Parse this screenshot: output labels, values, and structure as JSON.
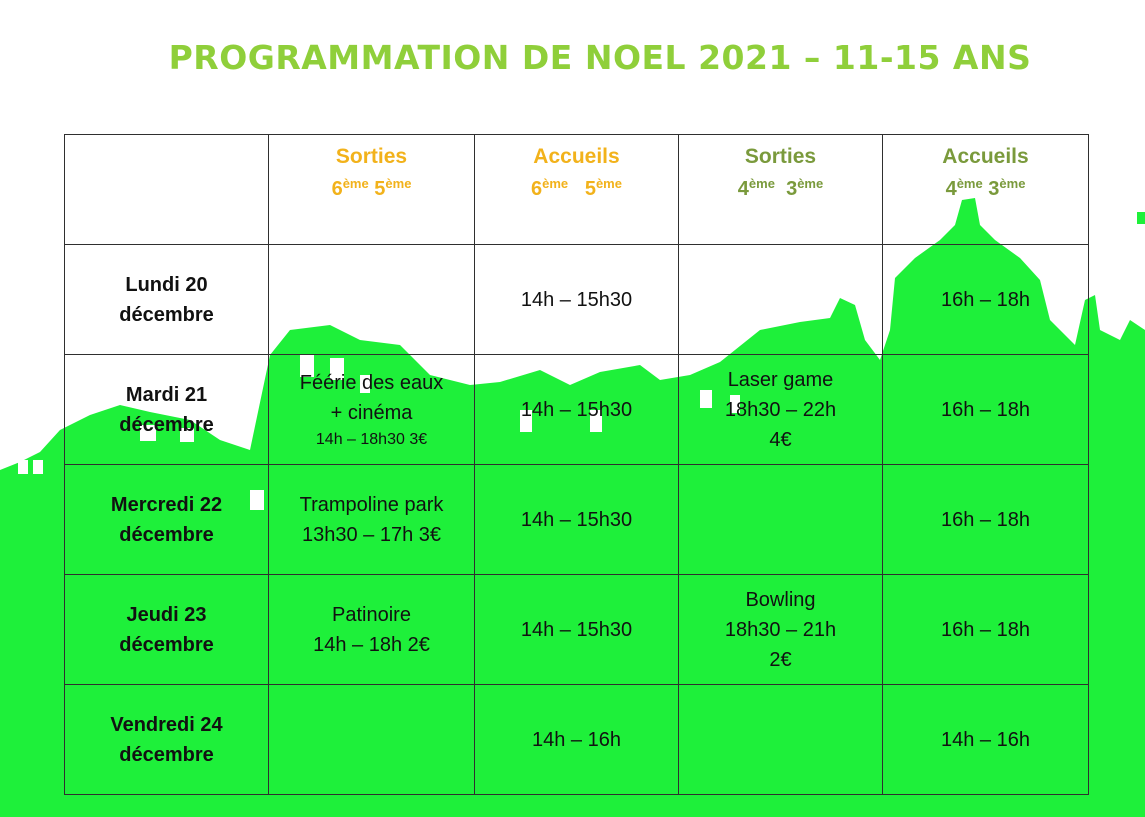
{
  "title": "PROGRAMMATION DE NOEL 2021 – 11-15 ANS",
  "colors": {
    "title": "#8fcf3a",
    "accent_orange": "#f2b21b",
    "accent_olive": "#7a9a3c",
    "background_green": "#1ef03a"
  },
  "headers": [
    {
      "label": "",
      "grades": [
        "",
        ""
      ]
    },
    {
      "label": "Sorties",
      "grades": [
        "6",
        "5"
      ],
      "sup": "ème"
    },
    {
      "label": "Accueils",
      "grades": [
        "6",
        "5"
      ],
      "sup": "ème"
    },
    {
      "label": "Sorties",
      "grades": [
        "4",
        "3"
      ],
      "sup": "ème"
    },
    {
      "label": "Accueils",
      "grades": [
        "4",
        "3"
      ],
      "sup": "ème"
    }
  ],
  "rows": [
    {
      "day": "Lundi 20",
      "month": "décembre",
      "sorties_65": [],
      "accueils_65": [
        "14h – 15h30"
      ],
      "sorties_43": [],
      "accueils_43": [
        "16h – 18h"
      ]
    },
    {
      "day": "Mardi 21",
      "month": "décembre",
      "sorties_65": [
        "Féérie des eaux",
        "+ cinéma",
        "14h – 18h30 3€"
      ],
      "accueils_65": [
        "14h – 15h30"
      ],
      "sorties_43": [
        "Laser game",
        "18h30 – 22h",
        "4€"
      ],
      "accueils_43": [
        "16h – 18h"
      ]
    },
    {
      "day": "Mercredi 22",
      "month": "décembre",
      "sorties_65": [
        "Trampoline park",
        "13h30 – 17h 3€"
      ],
      "accueils_65": [
        "14h – 15h30"
      ],
      "sorties_43": [],
      "accueils_43": [
        "16h – 18h"
      ]
    },
    {
      "day": "Jeudi 23",
      "month": "décembre",
      "sorties_65": [
        "Patinoire",
        "14h – 18h 2€"
      ],
      "accueils_65": [
        "14h – 15h30"
      ],
      "sorties_43": [
        "Bowling",
        "18h30 – 21h",
        "2€"
      ],
      "accueils_43": [
        "16h – 18h"
      ]
    },
    {
      "day": "Vendredi 24",
      "month": "décembre",
      "sorties_65": [],
      "accueils_65": [
        "14h – 16h"
      ],
      "sorties_43": [],
      "accueils_43": [
        "14h – 16h"
      ]
    }
  ]
}
